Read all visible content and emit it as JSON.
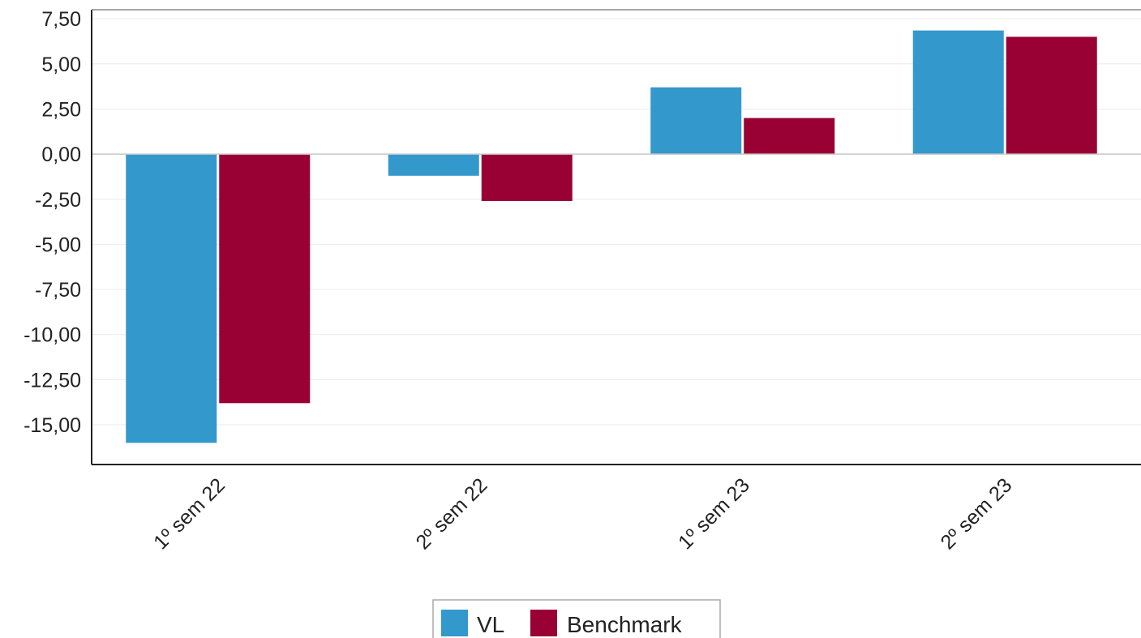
{
  "chart_data": {
    "type": "bar",
    "categories": [
      "1º sem 22",
      "2º sem 22",
      "1º sem 23",
      "2º sem 23"
    ],
    "series": [
      {
        "name": "VL",
        "color": "#3399cc",
        "values": [
          -16.0,
          -1.2,
          3.7,
          6.85
        ]
      },
      {
        "name": "Benchmark",
        "color": "#990033",
        "values": [
          -13.8,
          -2.6,
          2.0,
          6.5
        ]
      }
    ],
    "ylim": [
      -17.2,
      8.0
    ],
    "yticks": [
      7.5,
      5.0,
      2.5,
      0.0,
      -2.5,
      -5.0,
      -7.5,
      -10.0,
      -12.5,
      -15.0
    ],
    "ytick_labels": [
      "7,50",
      "5,00",
      "2,50",
      "0,00",
      "-2,50",
      "-5,00",
      "-7,50",
      "-10,00",
      "-12,50",
      "-15,00"
    ],
    "grid": true,
    "legend_position": "bottom-center",
    "title": "",
    "xlabel": "",
    "ylabel": ""
  }
}
